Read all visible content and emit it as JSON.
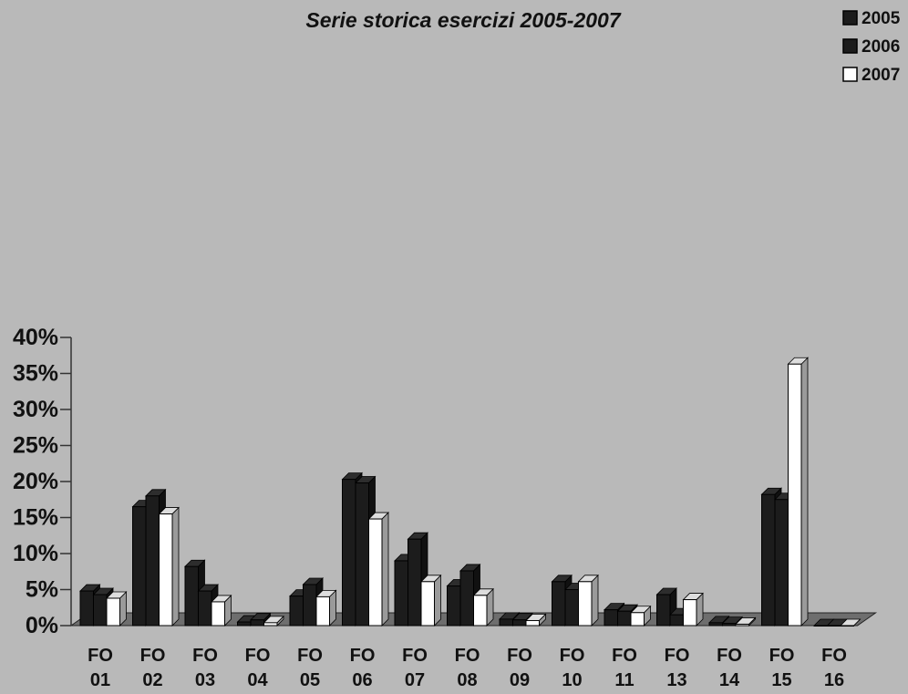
{
  "chart_data": {
    "type": "bar",
    "title": "",
    "subtitle": "Serie storica esercizi 2005-2007",
    "xlabel": "",
    "ylabel": "",
    "ylim": [
      0,
      40
    ],
    "y_ticks": [
      "0%",
      "5%",
      "10%",
      "15%",
      "20%",
      "25%",
      "30%",
      "35%",
      "40%"
    ],
    "categories": [
      [
        "FO",
        "01"
      ],
      [
        "FO",
        "02"
      ],
      [
        "FO",
        "03"
      ],
      [
        "FO",
        "04"
      ],
      [
        "FO",
        "05"
      ],
      [
        "FO",
        "06"
      ],
      [
        "FO",
        "07"
      ],
      [
        "FO",
        "08"
      ],
      [
        "FO",
        "09"
      ],
      [
        "FO",
        "10"
      ],
      [
        "FO",
        "11"
      ],
      [
        "FO",
        "13"
      ],
      [
        "FO",
        "14"
      ],
      [
        "FO",
        "15"
      ],
      [
        "FO",
        "16"
      ]
    ],
    "series": [
      {
        "name": "2005",
        "color": "#1c1c1c",
        "values": [
          4.8,
          16.5,
          8.2,
          0.5,
          4.1,
          20.3,
          9.0,
          5.5,
          0.9,
          6.1,
          2.2,
          4.3,
          0.4,
          18.2,
          0
        ]
      },
      {
        "name": "2006",
        "color": "#1c1c1c",
        "values": [
          4.3,
          18.0,
          4.8,
          0.8,
          5.7,
          19.8,
          12.0,
          7.6,
          0.8,
          5.0,
          2.0,
          1.5,
          0.3,
          17.5,
          0
        ]
      },
      {
        "name": "2007",
        "color": "#ffffff",
        "values": [
          3.8,
          15.5,
          3.3,
          0.4,
          4.0,
          14.8,
          6.1,
          4.2,
          0.7,
          6.1,
          1.8,
          3.6,
          0.2,
          36.3,
          0
        ]
      }
    ],
    "legend_position": "top-right",
    "three_d": true
  }
}
